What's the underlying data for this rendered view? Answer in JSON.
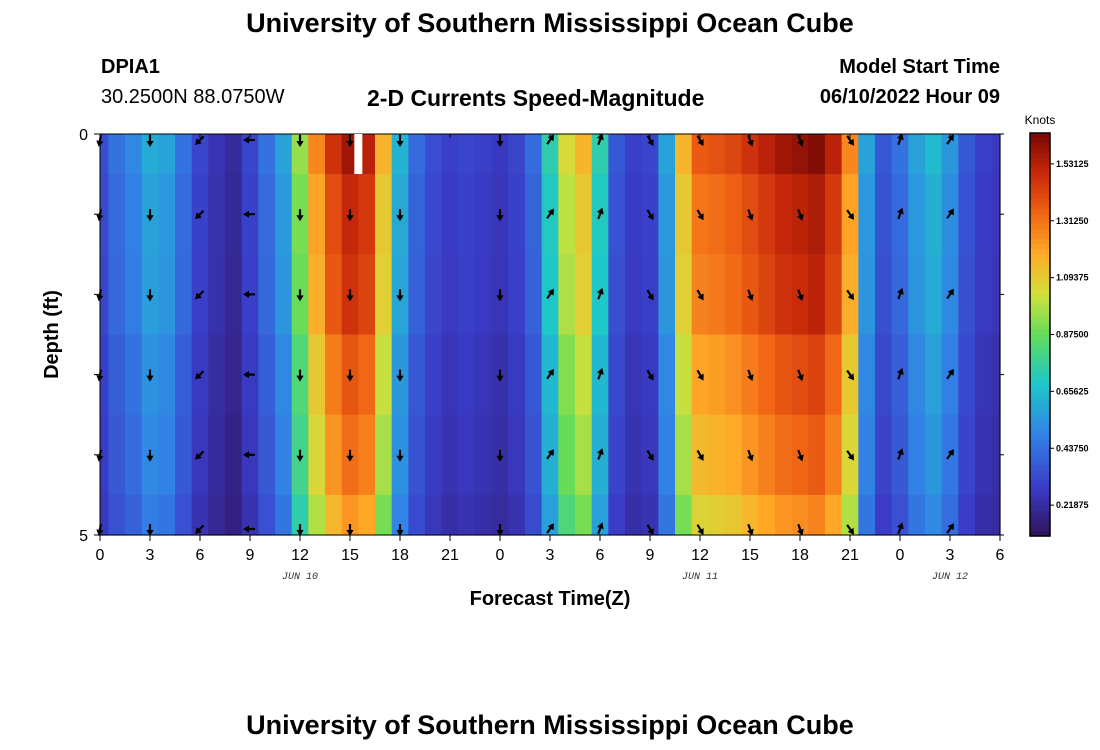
{
  "header": {
    "title": "University of Southern Mississippi Ocean Cube",
    "station_id": "DPIA1",
    "station_coords": "30.2500N  88.0750W",
    "plot_title": "2-D Currents Speed-Magnitude",
    "model_start_label": "Model Start Time",
    "model_start_value": "06/10/2022 Hour 09"
  },
  "footer": {
    "title": "University of Southern Mississippi Ocean Cube"
  },
  "chart_data": {
    "type": "heatmap",
    "title": "2-D Currents Speed-Magnitude",
    "xlabel": "Forecast Time(Z)",
    "ylabel": "Depth (ft)",
    "x_tick_labels": [
      "0",
      "3",
      "6",
      "9",
      "12",
      "15",
      "18",
      "21",
      "0",
      "3",
      "6",
      "9",
      "12",
      "15",
      "18",
      "21",
      "0",
      "3",
      "6"
    ],
    "date_labels": [
      {
        "label": "JUN 10",
        "hour_offset": 12
      },
      {
        "label": "JUN 11",
        "hour_offset": 36
      },
      {
        "label": "JUN 12",
        "hour_offset": 51
      }
    ],
    "x_range_hours": [
      0,
      54
    ],
    "y_range_ft": [
      0,
      5
    ],
    "y_tick_labels": [
      {
        "value": 0,
        "label": "0"
      },
      {
        "value": 5,
        "label": "5"
      }
    ],
    "colorbar": {
      "unit": "Knots",
      "range": [
        0.1,
        1.65
      ],
      "tick_values": [
        1.53125,
        1.3125,
        1.09375,
        0.875,
        0.65625,
        0.4375,
        0.21875
      ],
      "tick_labels": [
        "1.53125",
        "1.31250",
        "1.09375",
        "0.87500",
        "0.65625",
        "0.43750",
        "0.21875"
      ]
    },
    "profile_hours": [
      0,
      1,
      2,
      3,
      4,
      5,
      6,
      7,
      8,
      9,
      10,
      11,
      12,
      13,
      14,
      15,
      16,
      17,
      18,
      19,
      20,
      21,
      22,
      23,
      24,
      25,
      26,
      27,
      28,
      29,
      30,
      31,
      32,
      33,
      34,
      35,
      36,
      37,
      38,
      39,
      40,
      41,
      42,
      43,
      44,
      45,
      46,
      47,
      48,
      49,
      50,
      51,
      52,
      53,
      54
    ],
    "speed_profile_knots": [
      0.32,
      0.42,
      0.48,
      0.58,
      0.55,
      0.42,
      0.3,
      0.24,
      0.2,
      0.3,
      0.42,
      0.55,
      0.9,
      1.2,
      1.4,
      1.5,
      1.45,
      1.1,
      0.6,
      0.4,
      0.32,
      0.28,
      0.3,
      0.28,
      0.26,
      0.3,
      0.4,
      0.7,
      1.0,
      1.1,
      0.7,
      0.35,
      0.28,
      0.3,
      0.55,
      1.1,
      1.3,
      1.32,
      1.35,
      1.4,
      1.45,
      1.5,
      1.52,
      1.55,
      1.45,
      1.2,
      0.55,
      0.35,
      0.42,
      0.55,
      0.62,
      0.52,
      0.35,
      0.28,
      0.26
    ],
    "depth_levels_ft": [
      0,
      1,
      2,
      3,
      4,
      5
    ],
    "depth_factors": [
      1.05,
      1.0,
      0.98,
      0.92,
      0.88,
      0.82
    ],
    "vector_hours": [
      0,
      3,
      6,
      9,
      12,
      15,
      18,
      24,
      27,
      30,
      33,
      36,
      39,
      42,
      45,
      48,
      51
    ],
    "vector_depths_ft": [
      0,
      1,
      2,
      3,
      4,
      5
    ],
    "direction_column_deg": [
      190,
      180,
      225,
      270,
      180,
      180,
      180,
      180,
      35,
      20,
      150,
      150,
      160,
      160,
      145,
      20,
      35
    ]
  }
}
